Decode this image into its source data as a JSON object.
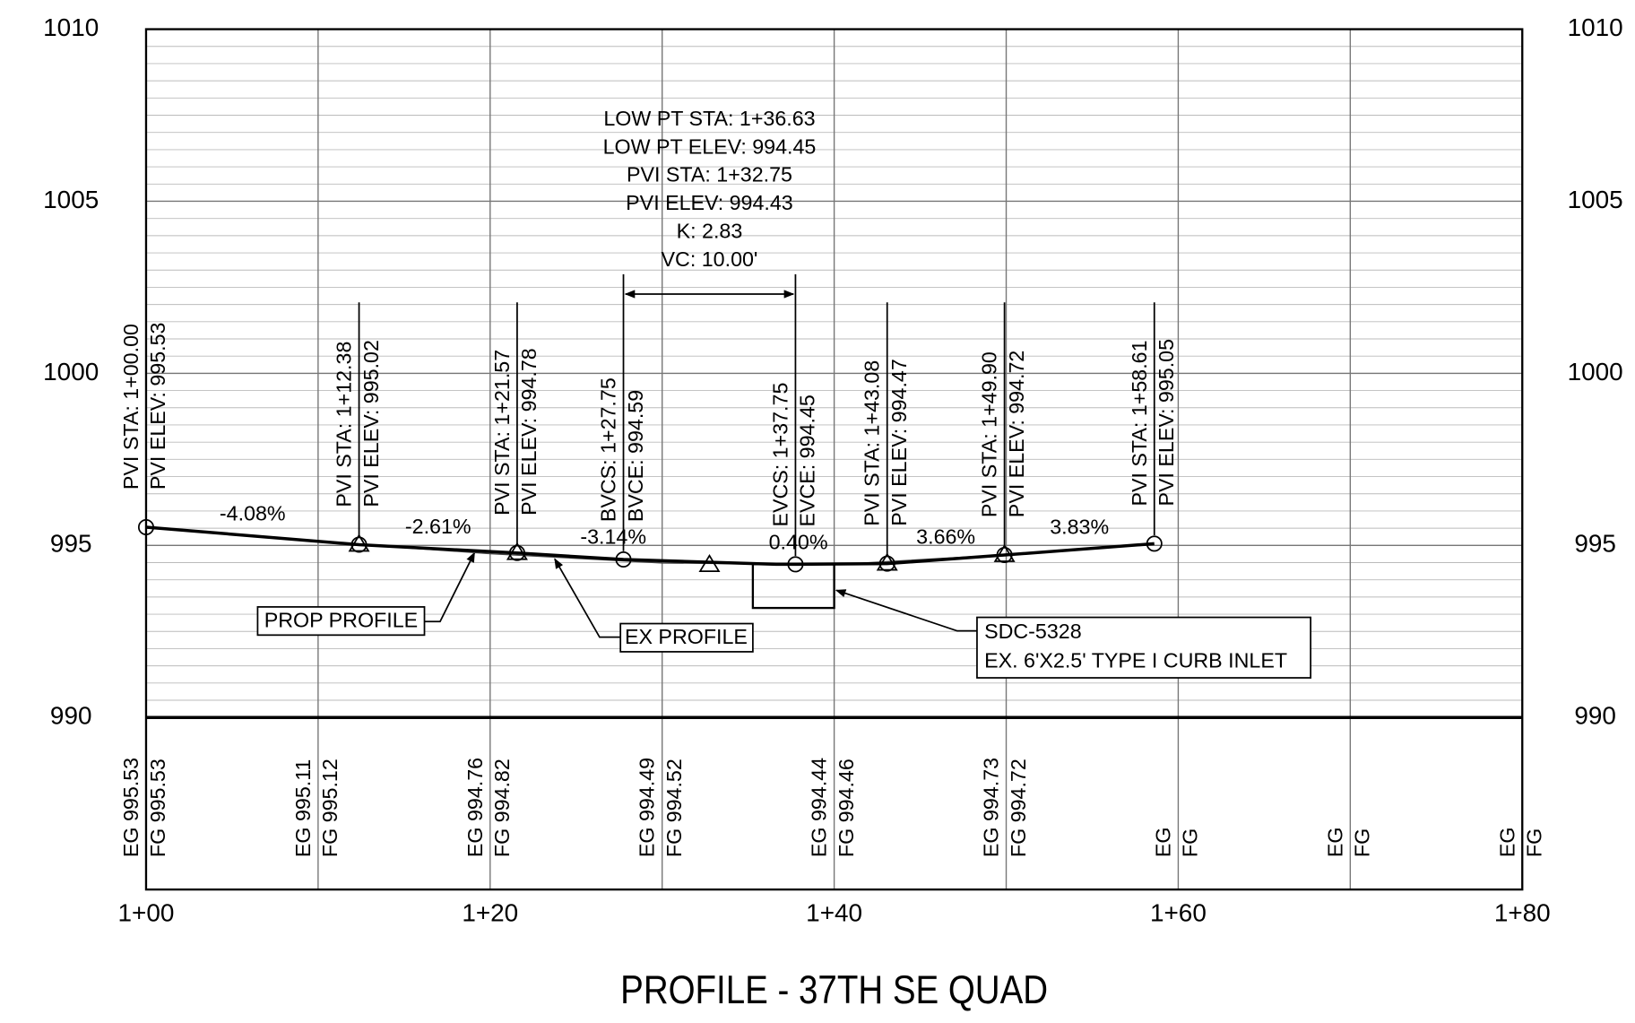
{
  "chart_data": {
    "type": "profile",
    "title": "PROFILE - 37TH SE QUAD",
    "xlim": [
      100,
      180
    ],
    "xticks": [
      {
        "value": 100,
        "label": "1+00"
      },
      {
        "value": 120,
        "label": "1+20"
      },
      {
        "value": 140,
        "label": "1+40"
      },
      {
        "value": 160,
        "label": "1+60"
      },
      {
        "value": 180,
        "label": "1+80"
      }
    ],
    "ylim": [
      990,
      1010
    ],
    "yticks": [
      990,
      995,
      1000,
      1005,
      1010
    ],
    "series": [
      {
        "name": "PROP PROFILE",
        "color": "#000000",
        "x": [
          100,
          112.38,
          121.57,
          127.75,
          136.63,
          137.75,
          143.08,
          149.9,
          158.61
        ],
        "values": [
          995.53,
          995.02,
          994.78,
          994.59,
          994.45,
          994.45,
          994.47,
          994.72,
          995.05
        ]
      },
      {
        "name": "EX PROFILE",
        "color": "#444444",
        "x": [
          100,
          110,
          120,
          130,
          140,
          150,
          160,
          170,
          180
        ],
        "values": [
          995.53,
          995.11,
          994.76,
          994.49,
          994.44,
          994.73,
          null,
          null,
          null
        ],
        "value_labels": [
          "EG 995.53",
          "EG 995.11",
          "EG 994.76",
          "EG 994.49",
          "EG 994.44",
          "EG 994.73",
          "EG",
          "EG",
          "EG"
        ]
      }
    ],
    "fg_labels": [
      "FG 995.53",
      "FG 995.12",
      "FG 994.82",
      "FG 994.52",
      "FG 994.46",
      "FG 994.72",
      "FG",
      "FG",
      "FG"
    ],
    "points": [
      {
        "x": 100,
        "y": 995.53,
        "marker": "circle",
        "labels": [
          "PVI STA: 1+00.00",
          "PVI ELEV: 995.53"
        ]
      },
      {
        "x": 112.38,
        "y": 995.02,
        "marker": "both",
        "labels": [
          "PVI STA: 1+12.38",
          "PVI ELEV: 995.02"
        ]
      },
      {
        "x": 121.57,
        "y": 994.78,
        "marker": "both",
        "labels": [
          "PVI STA: 1+21.57",
          "PVI ELEV: 994.78"
        ]
      },
      {
        "x": 127.75,
        "y": 994.59,
        "marker": "circle",
        "labels": [
          "BVCS: 1+27.75",
          "BVCE: 994.59"
        ]
      },
      {
        "x": 137.75,
        "y": 994.45,
        "marker": "circle",
        "labels": [
          "EVCS: 1+37.75",
          "EVCE: 994.45"
        ]
      },
      {
        "x": 143.08,
        "y": 994.47,
        "marker": "both",
        "labels": [
          "PVI STA: 1+43.08",
          "PVI ELEV: 994.47"
        ]
      },
      {
        "x": 149.9,
        "y": 994.72,
        "marker": "both",
        "labels": [
          "PVI STA: 1+49.90",
          "PVI ELEV: 994.72"
        ]
      },
      {
        "x": 158.61,
        "y": 995.05,
        "marker": "circle",
        "labels": [
          "PVI STA: 1+58.61",
          "PVI ELEV: 995.05"
        ]
      }
    ],
    "vertical_curve": {
      "x": 132.75,
      "y": 994.43,
      "lines": [
        "LOW PT STA: 1+36.63",
        "LOW PT ELEV: 994.45",
        "PVI STA: 1+32.75",
        "PVI ELEV: 994.43",
        "K: 2.83",
        "VC: 10.00'"
      ]
    },
    "grades": [
      "-4.08%",
      "-2.61%",
      "-3.14%",
      "0.40%",
      "3.66%",
      "3.83%"
    ],
    "callout": {
      "lines": [
        "SDC-5328",
        "EX. 6'X2.5' TYPE I CURB INLET"
      ]
    }
  }
}
